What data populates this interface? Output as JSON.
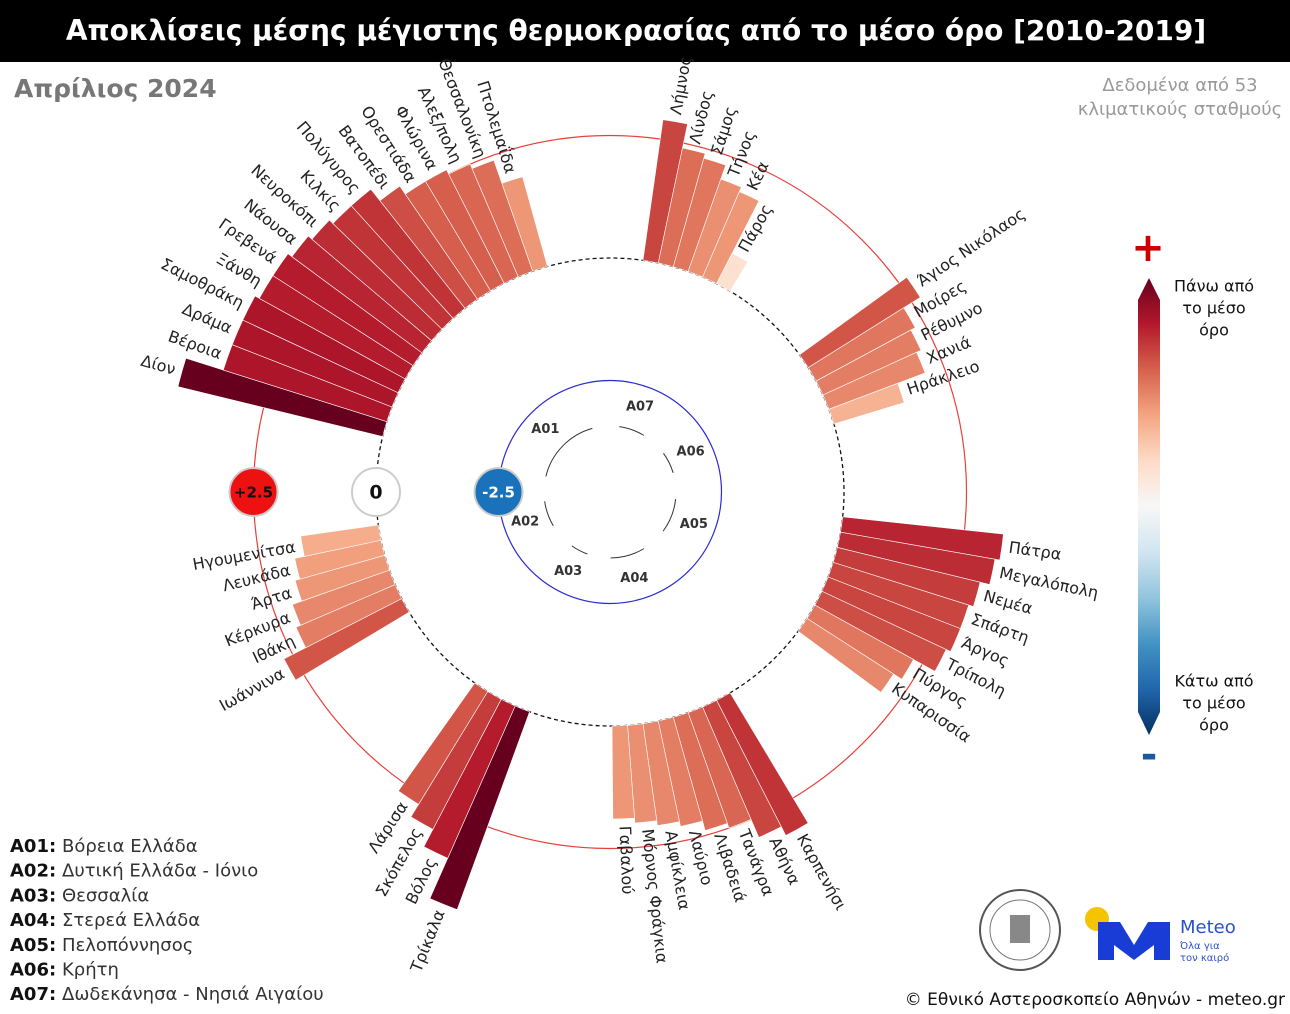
{
  "chart_data": {
    "type": "radial_bar",
    "title": "Αποκλίσεις μέσης μέγιστης θερμοκρασίας από το μέσο όρο [2010-2019]",
    "subtitle": "Απρίλιος 2024",
    "note": [
      "Δεδομένα από 53",
      "κλιματικούς σταθμούς"
    ],
    "yticks": [
      {
        "value": 2.5,
        "label": "+2.5"
      },
      0,
      -2.5
    ],
    "colormap": [
      "#053061",
      "#2166ac",
      "#4393c3",
      "#92c5de",
      "#d1e5f0",
      "#f7f7f7",
      "#fddbc7",
      "#f4a582",
      "#d6604d",
      "#b2182b",
      "#67001f"
    ],
    "colorbar_labels": {
      "high": [
        "Πάνω από",
        "το μέσο",
        "όρο"
      ],
      "low": [
        "Κάτω από",
        "το μέσο",
        "όρο"
      ],
      "plus": "+",
      "minus": "-"
    },
    "series": [
      {
        "name": "A01",
        "categories": [
          "Δίον",
          "Βέροια",
          "Δράμα",
          "Σαμοθράκη",
          "Ξάνθη",
          "Γρεβενά",
          "Νάουσα",
          "Νευροκόπι",
          "Κιλκίς",
          "Πολύγυρος",
          "Βατοπέδι",
          "Ορεστιάδα",
          "Φλώρινα",
          "Αλεξ/πολη",
          "Θεσσαλονίκη",
          "Πτολεμαΐδα"
        ],
        "values": [
          4.3,
          3.5,
          3.5,
          3.5,
          3.4,
          3.4,
          3.3,
          3.2,
          3.1,
          3.1,
          2.8,
          2.6,
          2.6,
          2.5,
          2.4,
          1.9
        ]
      },
      {
        "name": "A02",
        "categories": [
          "Ιωάννινα",
          "Ιθάκη",
          "Κέρκυρα",
          "Άρτα",
          "Λευκάδα",
          "Ηγουμενίτσα"
        ],
        "values": [
          2.7,
          2.2,
          2.1,
          1.9,
          1.8,
          1.6
        ]
      },
      {
        "name": "A03",
        "categories": [
          "Τρίκαλα",
          "Βόλος",
          "Σκόπελος",
          "Λάρισα"
        ],
        "values": [
          4.3,
          3.4,
          3.0,
          2.7
        ]
      },
      {
        "name": "A04",
        "categories": [
          "Καρπενήσι",
          "Αθήνα",
          "Τανάγρα",
          "Λιβαδειά",
          "Λαύριο",
          "Αμφίκλεια",
          "Μόρνος Φράγκια",
          "Γαβαλού"
        ],
        "values": [
          3.1,
          2.9,
          2.5,
          2.4,
          2.2,
          2.1,
          2.0,
          1.9
        ]
      },
      {
        "name": "A05",
        "categories": [
          "Πάτρα",
          "Μεγαλόπολη",
          "Νεμέα",
          "Σπάρτη",
          "Άργος",
          "Τρίπολη",
          "Πύργος",
          "Κυπαρισσία"
        ],
        "values": [
          3.3,
          3.2,
          3.0,
          2.9,
          2.9,
          2.8,
          2.3,
          2.1
        ]
      },
      {
        "name": "A06",
        "categories": [
          "Άγιος Νικόλαος",
          "Μοίρες",
          "Ρέθυμνο",
          "Χανιά",
          "Ηράκλειο"
        ],
        "values": [
          2.7,
          2.3,
          2.2,
          2.1,
          1.5
        ]
      },
      {
        "name": "A07",
        "categories": [
          "Λήμνος",
          "Λίνδος",
          "Σάμος",
          "Τήνος",
          "Κέα",
          "Πάρος"
        ],
        "values": [
          2.9,
          2.4,
          2.3,
          2.0,
          1.9,
          0.7
        ]
      }
    ],
    "legend": [
      {
        "code": "A01:",
        "name": "Βόρεια Ελλάδα"
      },
      {
        "code": "A02:",
        "name": "Δυτική Ελλάδα - Ιόνιο"
      },
      {
        "code": "A03:",
        "name": "Θεσσαλία"
      },
      {
        "code": "A04:",
        "name": "Στερεά Ελλάδα"
      },
      {
        "code": "A05:",
        "name": "Πελοπόννησος"
      },
      {
        "code": "A06:",
        "name": "Κρήτη"
      },
      {
        "code": "A07:",
        "name": "Δωδεκάνησα - Νησιά Αιγαίου"
      }
    ]
  },
  "footer": {
    "logo_name": "Meteo",
    "logo_tagline": [
      "Όλα για",
      "τον καιρό"
    ],
    "copyright": "© Εθνικό Αστεροσκοπείο Αθηνών - meteo.gr"
  }
}
